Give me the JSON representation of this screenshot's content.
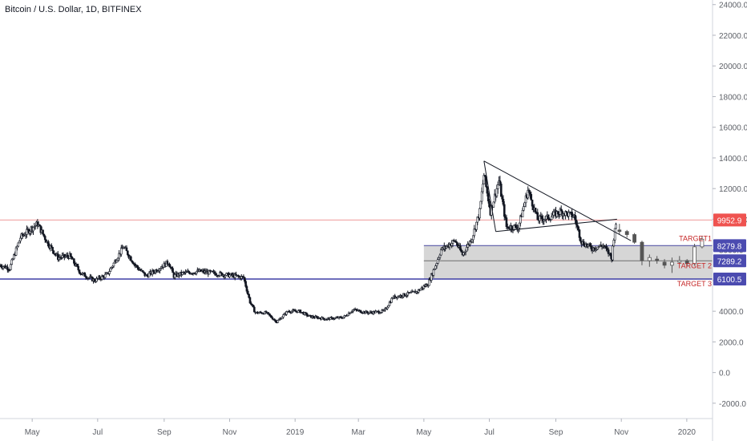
{
  "title": "Bitcoin / U.S. Dollar, 1D, BITFINEX",
  "colors": {
    "background": "#ffffff",
    "candle": "#131722",
    "up_candle": "#ffffff",
    "resistance_line": "#ef9a9a",
    "support_line": "#3f3fa5",
    "target_zone": "#c8c8c8",
    "target_line": "#5b5ba8",
    "price_label_red": "#ef5350",
    "price_label_blue": "#4b4bb0",
    "target_text": "#c62828",
    "axis_text": "#5d6067"
  },
  "chart_data": {
    "type": "candlestick",
    "y_axis": {
      "ticks": [
        "24000.0",
        "22000.0",
        "20000.0",
        "18000.0",
        "16000.0",
        "14000.0",
        "12000.0",
        "10000.0",
        "8000.0",
        "6000.0",
        "4000.0",
        "2000.0",
        "0.0",
        "-2000.0"
      ],
      "tick_values": [
        24000,
        22000,
        20000,
        18000,
        16000,
        14000,
        12000,
        10000,
        8000,
        6000,
        4000,
        2000,
        0,
        -2000
      ],
      "range": [
        -3000,
        24300
      ]
    },
    "x_axis": {
      "range": [
        "2018-04-01",
        "2020-01-25"
      ],
      "labels": [
        {
          "text": "May",
          "date": "2018-05-01"
        },
        {
          "text": "Jul",
          "date": "2018-07-01"
        },
        {
          "text": "Sep",
          "date": "2018-09-01"
        },
        {
          "text": "Nov",
          "date": "2018-11-01"
        },
        {
          "text": "2019",
          "date": "2019-01-01"
        },
        {
          "text": "Mar",
          "date": "2019-03-01"
        },
        {
          "text": "May",
          "date": "2019-05-01"
        },
        {
          "text": "Jul",
          "date": "2019-07-01"
        },
        {
          "text": "Sep",
          "date": "2019-09-01"
        },
        {
          "text": "Nov",
          "date": "2019-11-01"
        },
        {
          "text": "2020",
          "date": "2020-01-01"
        }
      ]
    },
    "daily_close_path": [
      [
        "2018-04-01",
        7000
      ],
      [
        "2018-04-10",
        6800
      ],
      [
        "2018-04-20",
        8800
      ],
      [
        "2018-04-30",
        9400
      ],
      [
        "2018-05-06",
        9700
      ],
      [
        "2018-05-15",
        8500
      ],
      [
        "2018-05-25",
        7500
      ],
      [
        "2018-06-05",
        7600
      ],
      [
        "2018-06-15",
        6500
      ],
      [
        "2018-06-28",
        6000
      ],
      [
        "2018-07-10",
        6400
      ],
      [
        "2018-07-25",
        8200
      ],
      [
        "2018-08-05",
        7000
      ],
      [
        "2018-08-15",
        6300
      ],
      [
        "2018-08-25",
        6700
      ],
      [
        "2018-09-05",
        7200
      ],
      [
        "2018-09-10",
        6300
      ],
      [
        "2018-09-20",
        6500
      ],
      [
        "2018-10-05",
        6600
      ],
      [
        "2018-10-20",
        6450
      ],
      [
        "2018-11-01",
        6350
      ],
      [
        "2018-11-14",
        6200
      ],
      [
        "2018-11-20",
        4600
      ],
      [
        "2018-11-25",
        3900
      ],
      [
        "2018-12-05",
        3900
      ],
      [
        "2018-12-15",
        3300
      ],
      [
        "2018-12-25",
        4000
      ],
      [
        "2019-01-05",
        4000
      ],
      [
        "2019-01-15",
        3650
      ],
      [
        "2019-01-30",
        3500
      ],
      [
        "2019-02-15",
        3600
      ],
      [
        "2019-02-24",
        4100
      ],
      [
        "2019-03-10",
        3900
      ],
      [
        "2019-03-25",
        4000
      ],
      [
        "2019-04-02",
        4900
      ],
      [
        "2019-04-15",
        5100
      ],
      [
        "2019-04-25",
        5300
      ],
      [
        "2019-05-05",
        5800
      ],
      [
        "2019-05-12",
        7000
      ],
      [
        "2019-05-17",
        8000
      ],
      [
        "2019-05-30",
        8600
      ],
      [
        "2019-06-06",
        7700
      ],
      [
        "2019-06-15",
        8800
      ],
      [
        "2019-06-22",
        10500
      ],
      [
        "2019-06-26",
        12900
      ],
      [
        "2019-07-02",
        10500
      ],
      [
        "2019-07-10",
        12500
      ],
      [
        "2019-07-17",
        9500
      ],
      [
        "2019-07-28",
        9500
      ],
      [
        "2019-08-06",
        11900
      ],
      [
        "2019-08-15",
        10000
      ],
      [
        "2019-08-25",
        10100
      ],
      [
        "2019-09-05",
        10500
      ],
      [
        "2019-09-18",
        10200
      ],
      [
        "2019-09-25",
        8500
      ],
      [
        "2019-10-05",
        8100
      ],
      [
        "2019-10-15",
        8300
      ],
      [
        "2019-10-23",
        7500
      ],
      [
        "2019-10-26",
        9500
      ],
      [
        "2019-11-05",
        9300
      ],
      [
        "2019-11-15",
        8600
      ],
      [
        "2019-11-22",
        7300
      ],
      [
        "2019-12-05",
        7300
      ],
      [
        "2019-12-18",
        6700
      ],
      [
        "2019-12-31",
        7200
      ],
      [
        "2020-01-08",
        8100
      ],
      [
        "2020-01-14",
        8700
      ],
      [
        "2020-01-25",
        8600
      ]
    ],
    "weekly_projection": [
      [
        "2019-10-28",
        9300,
        9700,
        9000,
        9200
      ],
      [
        "2019-11-04",
        9200,
        9300,
        8800,
        9000
      ],
      [
        "2019-11-11",
        9000,
        9100,
        8400,
        8500
      ],
      [
        "2019-11-18",
        8500,
        8600,
        7000,
        7300
      ],
      [
        "2019-11-25",
        7300,
        7700,
        6900,
        7500
      ],
      [
        "2019-12-02",
        7400,
        7600,
        7100,
        7300
      ],
      [
        "2019-12-09",
        7200,
        7400,
        6800,
        7000
      ],
      [
        "2019-12-16",
        7000,
        7500,
        6500,
        7200
      ],
      [
        "2019-12-23",
        7200,
        7600,
        7100,
        7300
      ],
      [
        "2019-12-30",
        7300,
        7400,
        6900,
        7100
      ],
      [
        "2020-01-06",
        7100,
        8400,
        7000,
        8200
      ],
      [
        "2020-01-13",
        8200,
        8900,
        8100,
        8700
      ]
    ],
    "horizontal_lines": [
      {
        "label": "9952.9",
        "value": 9952.9,
        "color": "#ef9a9a"
      },
      {
        "label": "6100.5",
        "value": 6100.5,
        "color": "#3f3fa5"
      }
    ],
    "target_zone": {
      "from": 6100.5,
      "to": 8279.8,
      "start": "2019-05-01"
    },
    "targets": [
      {
        "name": "TARGET1",
        "value": 8279.8,
        "label": "8279.8"
      },
      {
        "name": "TARGET 2",
        "value": 7289.2,
        "label": "7289.2"
      },
      {
        "name": "TARGET 3",
        "value": 6100.5,
        "label": "6100.5"
      }
    ],
    "triangle": {
      "upper": [
        [
          "2019-06-26",
          13800
        ],
        [
          "2019-11-10",
          8600
        ]
      ],
      "lower": [
        [
          "2019-07-07",
          9200
        ],
        [
          "2019-10-28",
          10000
        ]
      ]
    }
  }
}
